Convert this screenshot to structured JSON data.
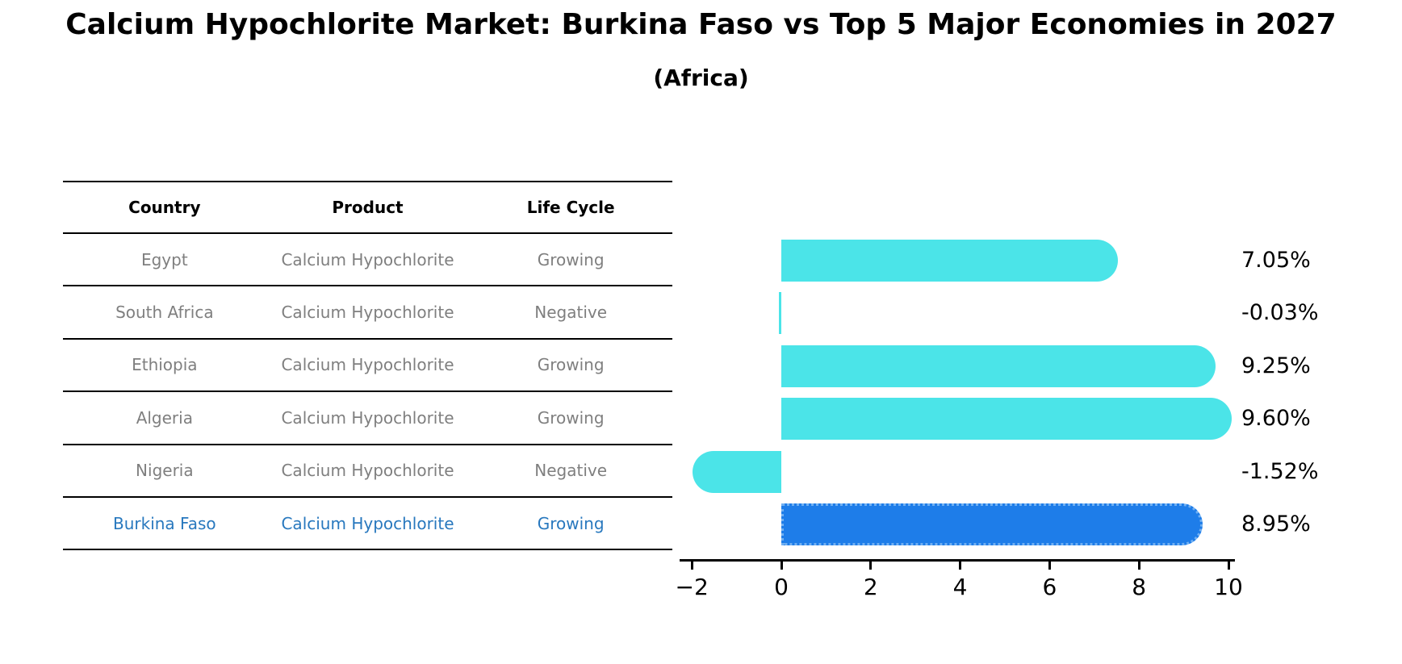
{
  "page": {
    "title": "Calcium Hypochlorite Market: Burkina Faso vs Top 5 Major Economies in 2027",
    "subtitle": "(Africa)"
  },
  "table": {
    "headers": [
      "Country",
      "Product",
      "Life Cycle"
    ],
    "rows": [
      {
        "country": "Egypt",
        "product": "Calcium Hypochlorite",
        "life_cycle": "Growing",
        "highlight": false
      },
      {
        "country": "South Africa",
        "product": "Calcium Hypochlorite",
        "life_cycle": "Negative",
        "highlight": false
      },
      {
        "country": "Ethiopia",
        "product": "Calcium Hypochlorite",
        "life_cycle": "Growing",
        "highlight": false
      },
      {
        "country": "Algeria",
        "product": "Calcium Hypochlorite",
        "life_cycle": "Growing",
        "highlight": false
      },
      {
        "country": "Nigeria",
        "product": "Calcium Hypochlorite",
        "life_cycle": "Negative",
        "highlight": false
      },
      {
        "country": "Burkina Faso",
        "product": "Calcium Hypochlorite",
        "life_cycle": "Growing",
        "highlight": true
      }
    ]
  },
  "chart_data": {
    "type": "bar",
    "orientation": "horizontal",
    "title": "Calcium Hypochlorite Market: Burkina Faso vs Top 5 Major Economies in 2027 (Africa)",
    "categories": [
      "Egypt",
      "South Africa",
      "Ethiopia",
      "Algeria",
      "Nigeria",
      "Burkina Faso"
    ],
    "values": [
      7.05,
      -0.03,
      9.25,
      9.6,
      -1.52,
      8.95
    ],
    "value_labels": [
      "7.05%",
      "-0.03%",
      "9.25%",
      "9.60%",
      "-1.52%",
      "8.95%"
    ],
    "xlim": [
      -2.3,
      10.2
    ],
    "x_ticks": [
      -2,
      0,
      2,
      4,
      6,
      8,
      10
    ],
    "x_tick_labels": [
      "−2",
      "0",
      "2",
      "4",
      "6",
      "8",
      "10"
    ],
    "grid": false,
    "legend": false,
    "bar_color": "#4BE4E8",
    "highlight_bar_color": "#1E7DE9",
    "highlight_border_color": "#71B0F2",
    "highlight_border_style": "dotted",
    "highlight_index": 5
  },
  "colors": {
    "row_text": "#7f7f7f",
    "highlight_text": "#2878BE",
    "axis": "#000000"
  }
}
